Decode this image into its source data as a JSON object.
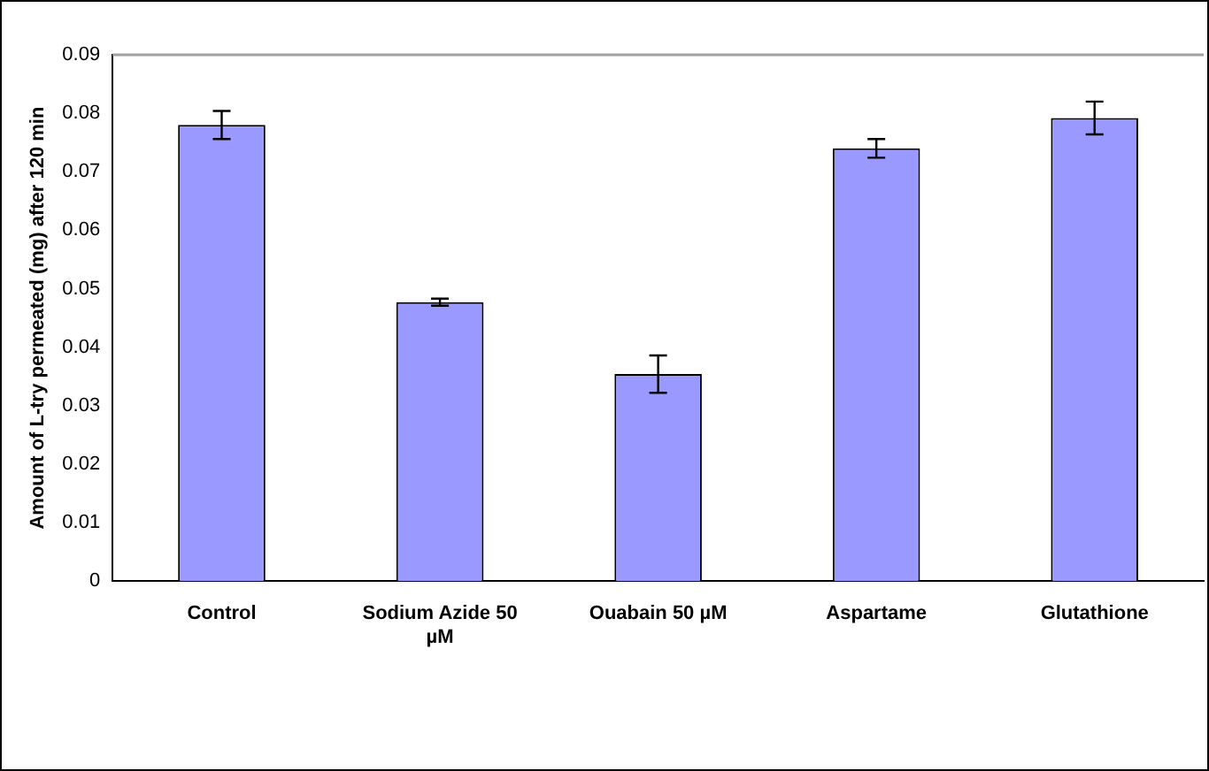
{
  "chart_data": {
    "type": "bar",
    "ylabel": "Amount of L-try permeated (mg) after 120 min",
    "categories": [
      "Control",
      "Sodium Azide 50 µM",
      "Ouabain 50 µM",
      "Aspartame",
      "Glutathione"
    ],
    "values": [
      0.078,
      0.0477,
      0.0354,
      0.074,
      0.0792
    ],
    "errors": [
      0.0024,
      0.0006,
      0.0032,
      0.0016,
      0.0028
    ],
    "color": "#9999ff",
    "ylim": [
      0,
      0.09
    ],
    "yticks": [
      0,
      0.01,
      0.02,
      0.03,
      0.04,
      0.05,
      0.06,
      0.07,
      0.08,
      0.09
    ],
    "grid": false,
    "legend": false
  }
}
